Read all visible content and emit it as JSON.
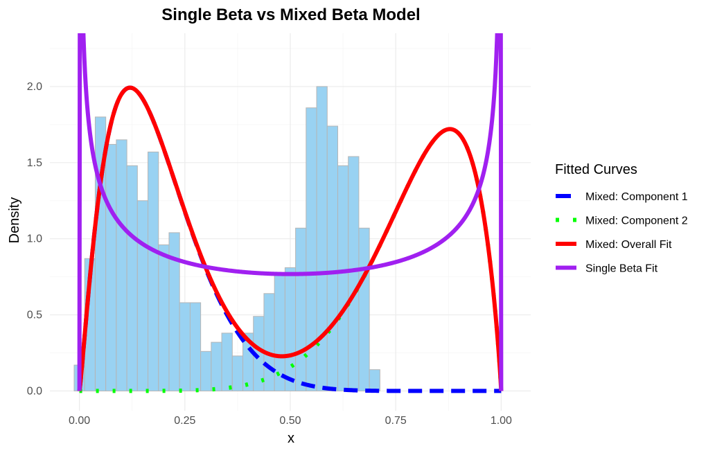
{
  "chart_data": {
    "type": "histogram-with-density-curves",
    "title": "Single Beta vs Mixed Beta Model",
    "xlabel": "x",
    "ylabel": "Density",
    "xlim": [
      -0.07,
      1.07
    ],
    "ylim": [
      -0.13,
      2.35
    ],
    "x_ticks": [
      {
        "value": 0,
        "label": "0.00"
      },
      {
        "value": 0.25,
        "label": "0.25"
      },
      {
        "value": 0.5,
        "label": "0.50"
      },
      {
        "value": 0.75,
        "label": "0.75"
      },
      {
        "value": 1,
        "label": "1.00"
      }
    ],
    "y_ticks": [
      {
        "value": 0,
        "label": "0.0"
      },
      {
        "value": 0.5,
        "label": "0.5"
      },
      {
        "value": 1,
        "label": "1.0"
      },
      {
        "value": 1.5,
        "label": "1.5"
      },
      {
        "value": 2,
        "label": "2.0"
      }
    ],
    "grid": true,
    "histogram": {
      "bin_width": 0.025,
      "bin_start": -0.0125,
      "bar_color": "#99d2f2",
      "bar_border": "#b5b5b5",
      "values": [
        0.17,
        0.87,
        1.8,
        1.62,
        1.65,
        1.48,
        1.25,
        1.57,
        0.96,
        1.04,
        0.58,
        0.58,
        0.26,
        0.32,
        0.38,
        0.23,
        0.38,
        0.49,
        0.64,
        0.76,
        0.81,
        1.07,
        1.86,
        2.0,
        1.74,
        1.48,
        1.54,
        1.07,
        0.14
      ]
    },
    "legend": {
      "title": "Fitted Curves",
      "position": "right"
    },
    "series": [
      {
        "name": "Mixed: Component 1",
        "color": "#0000ff",
        "dash": "long-dash",
        "distribution": "beta",
        "alpha": 2.2,
        "beta": 9.8,
        "weight": 0.5
      },
      {
        "name": "Mixed: Component 2",
        "color": "#00ff00",
        "dash": "dotted",
        "distribution": "beta",
        "alpha": 7.5,
        "beta": 1.9,
        "weight": 0.5
      },
      {
        "name": "Mixed: Overall Fit",
        "color": "#ff0000",
        "dash": "solid",
        "distribution": "mixture"
      },
      {
        "name": "Single Beta Fit",
        "color": "#a020f0",
        "dash": "solid",
        "distribution": "beta",
        "alpha": 0.66,
        "beta": 0.66,
        "weight": 1
      }
    ]
  }
}
